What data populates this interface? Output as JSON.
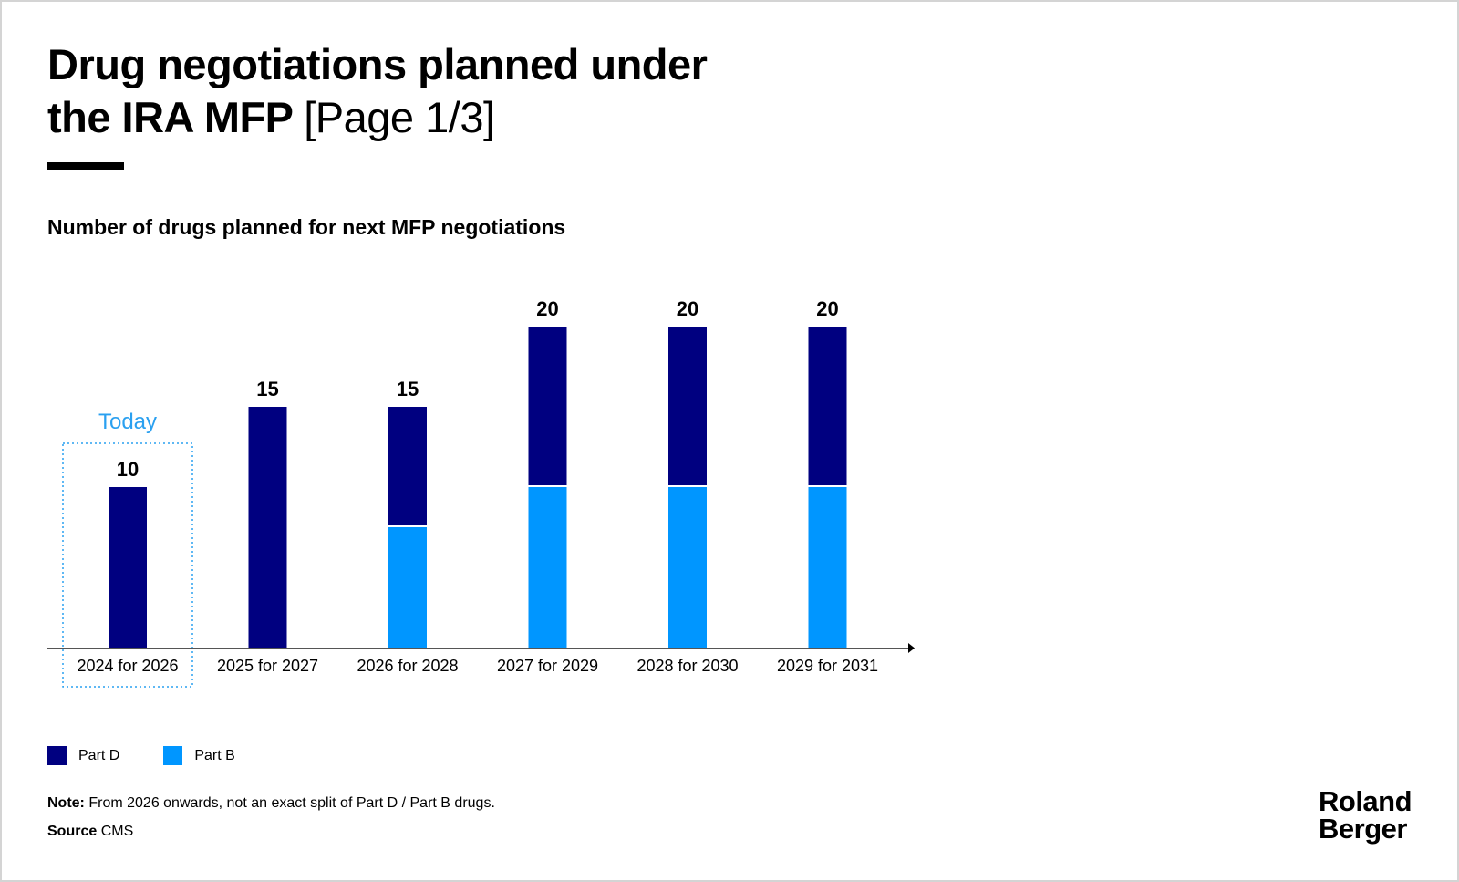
{
  "title": {
    "main_line1": "Drug negotiations planned under",
    "main_line2": "the IRA MFP",
    "page": "[Page 1/3]"
  },
  "chart_data": {
    "type": "bar",
    "stacked": true,
    "title": "Number of drugs planned for next MFP negotiations",
    "categories": [
      "2024 for 2026",
      "2025 for 2027",
      "2026 for 2028",
      "2027 for 2029",
      "2028 for 2030",
      "2029 for 2031"
    ],
    "series": [
      {
        "name": "Part B",
        "color": "#0096ff",
        "values": [
          0,
          0,
          7.5,
          10,
          10,
          10
        ]
      },
      {
        "name": "Part D",
        "color": "#000080",
        "values": [
          10,
          15,
          7.5,
          10,
          10,
          10
        ]
      }
    ],
    "totals": [
      "10",
      "15",
      "15",
      "20",
      "20",
      "20"
    ],
    "ylim": [
      0,
      20
    ],
    "highlight": {
      "category_index": 0,
      "label": "Today",
      "color": "#2aa0f0"
    },
    "legend_position": "bottom-left",
    "xlabel": "",
    "ylabel": ""
  },
  "legend": {
    "items": [
      {
        "label": "Part D",
        "color": "#000080"
      },
      {
        "label": "Part B",
        "color": "#0096ff"
      }
    ]
  },
  "footer": {
    "note_label": "Note:",
    "note_text": "From 2026 onwards, not an exact split of Part D / Part B drugs.",
    "source_label": "Source",
    "source_text": "CMS"
  },
  "brand": {
    "line1": "Roland",
    "line2": "Berger"
  }
}
